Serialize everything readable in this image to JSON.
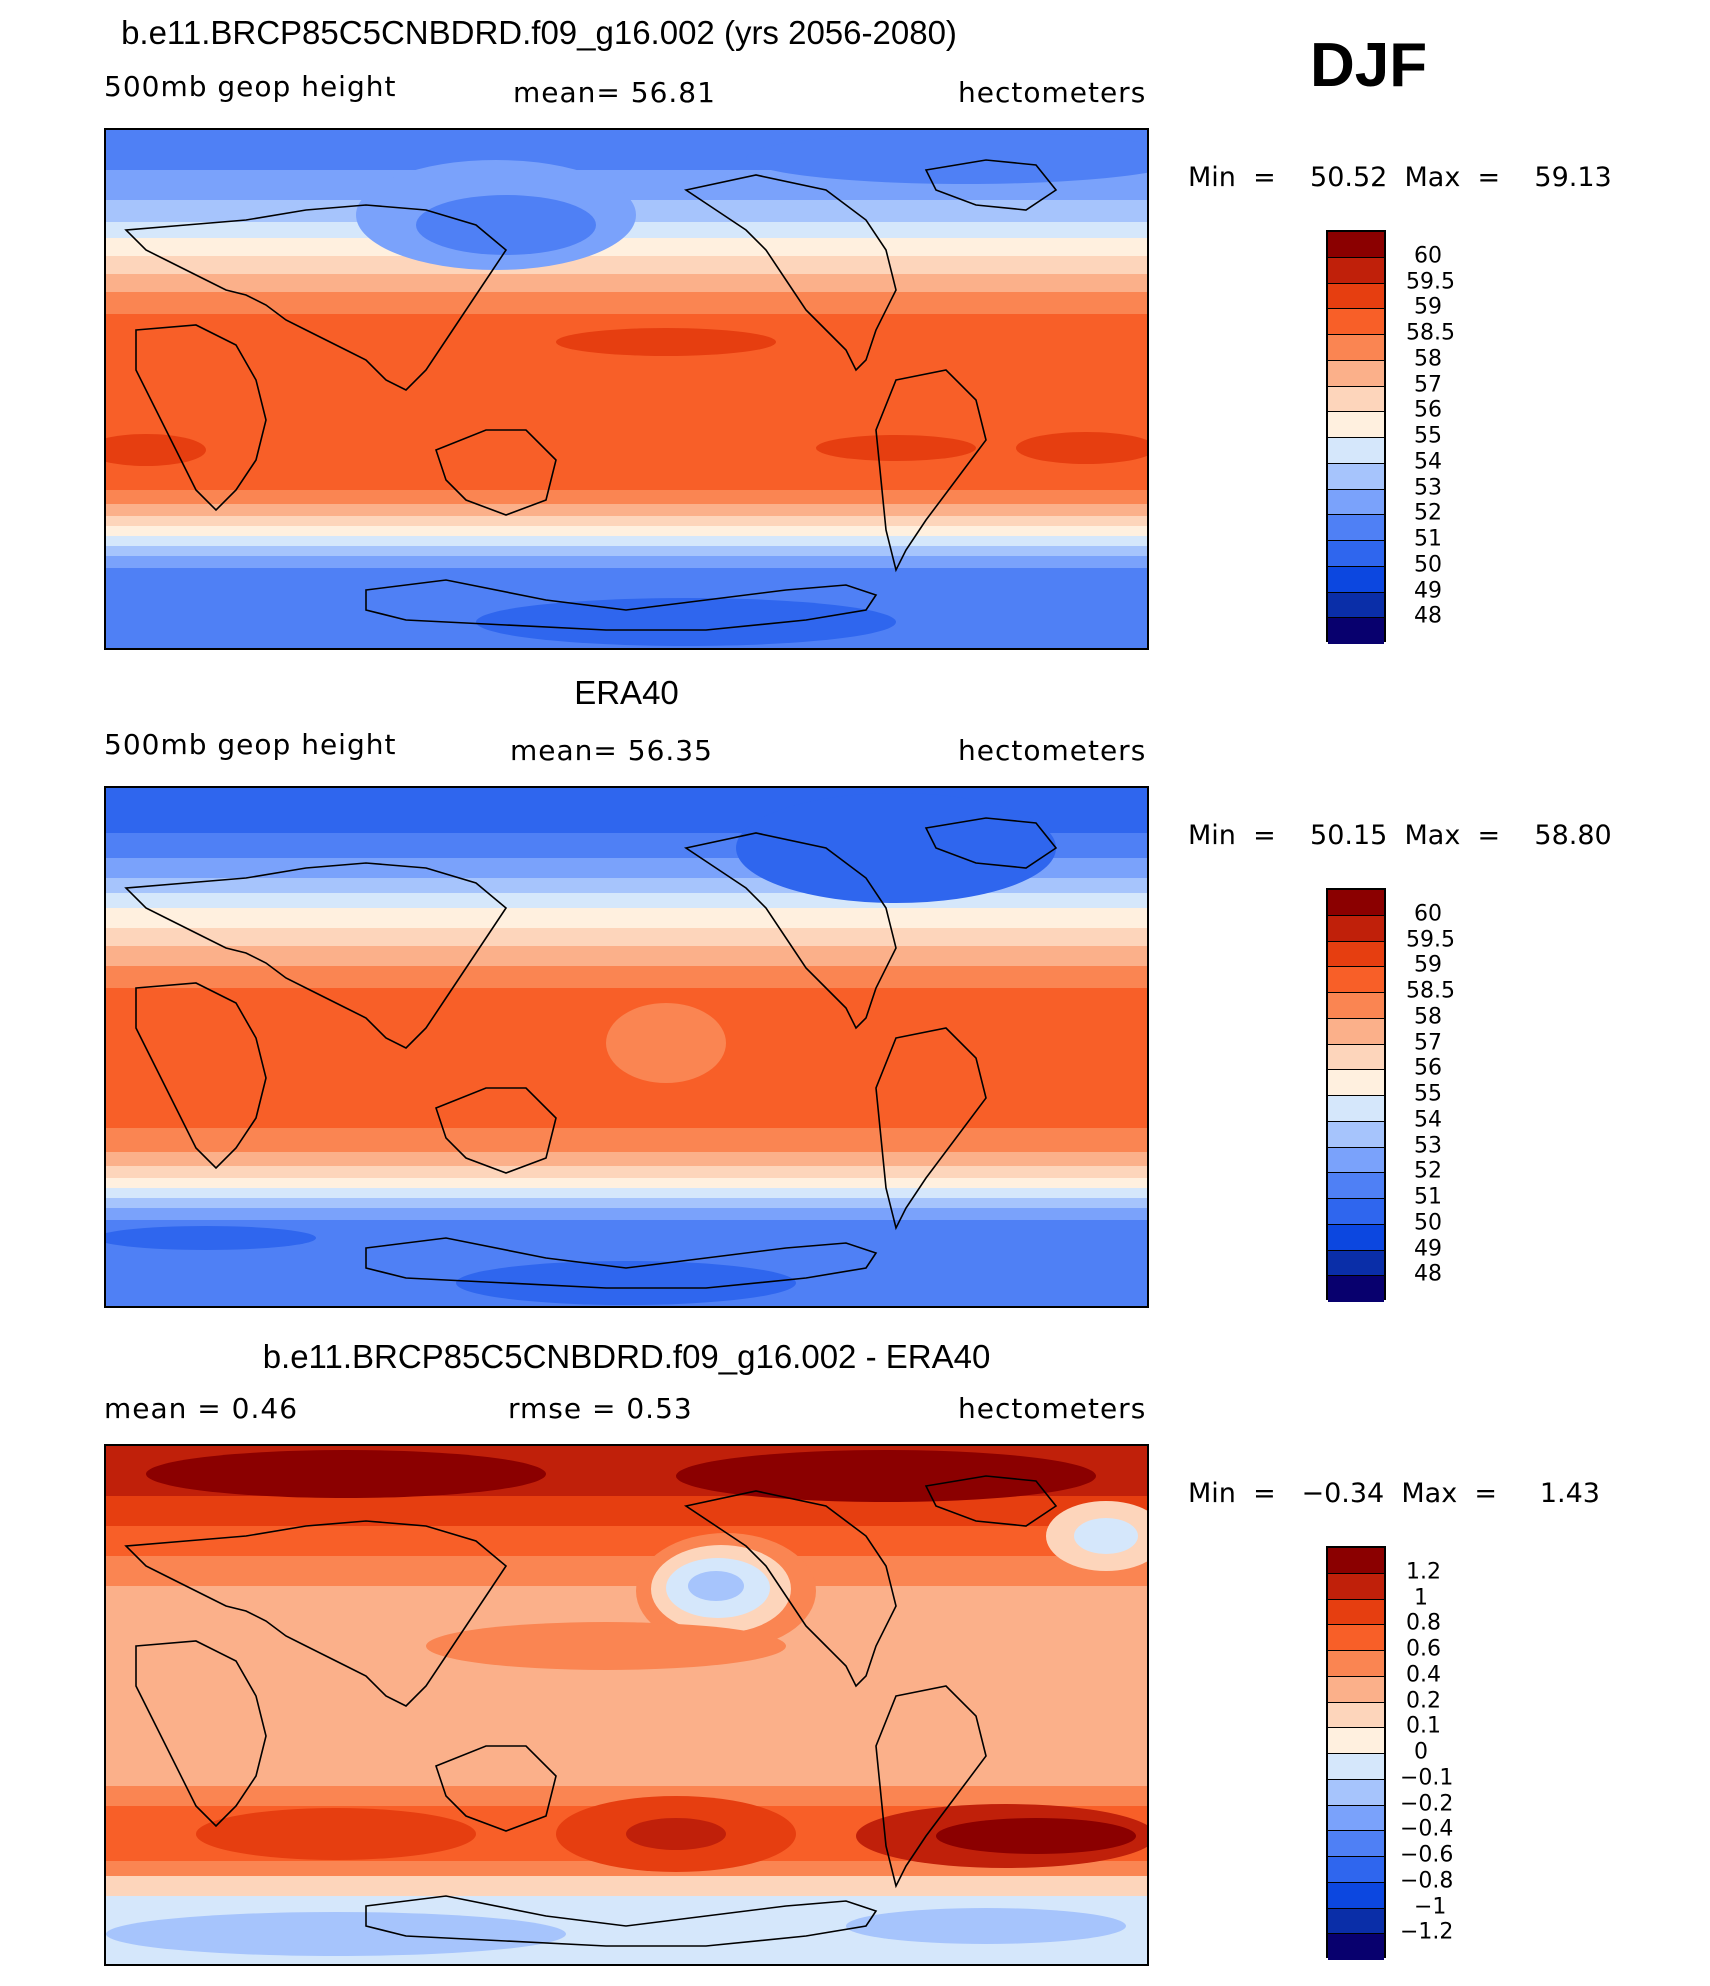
{
  "season": "DJF",
  "colors": {
    "abs_scale": [
      "#08006e",
      "#0a2ea8",
      "#0c47e0",
      "#2f66ee",
      "#4f80f5",
      "#7aa2fb",
      "#a6c4fc",
      "#d5e7fb",
      "#fff0df",
      "#fdd5bb",
      "#fbb08a",
      "#fa8552",
      "#f85f28",
      "#e63e10",
      "#c0200a",
      "#8b0000"
    ],
    "diff_scale": [
      "#08006e",
      "#0a2ea8",
      "#0c47e0",
      "#2f66ee",
      "#4f80f5",
      "#7aa2fb",
      "#a6c4fc",
      "#d5e7fb",
      "#fff0df",
      "#fdd5bb",
      "#fbb08a",
      "#fa8552",
      "#f85f28",
      "#e63e10",
      "#c0200a",
      "#8b0000"
    ]
  },
  "panels": [
    {
      "title": "b.e11.BRCP85C5CNBDRD.f09_g16.002 (yrs 2056-2080)",
      "left_label": "500mb  geop  height",
      "center_label": "mean=   56.81",
      "right_label": "hectometers",
      "minmax": "Min  =    50.52  Max  =    59.13",
      "colorbar_labels": [
        "60",
        "59.5",
        "59",
        "58.5",
        "58",
        "57",
        "56",
        "55",
        "54",
        "53",
        "52",
        "51",
        "50",
        "49",
        "48"
      ]
    },
    {
      "title": "ERA40",
      "left_label": "500mb  geop  height",
      "center_label": "mean=   56.35",
      "right_label": "hectometers",
      "minmax": "Min  =    50.15  Max  =    58.80",
      "colorbar_labels": [
        "60",
        "59.5",
        "59",
        "58.5",
        "58",
        "57",
        "56",
        "55",
        "54",
        "53",
        "52",
        "51",
        "50",
        "49",
        "48"
      ]
    },
    {
      "title": "b.e11.BRCP85C5CNBDRD.f09_g16.002 - ERA40",
      "left_label": "mean  =     0.46",
      "center_label": "rmse  =     0.53",
      "right_label": "hectometers",
      "minmax": "Min  =   −0.34  Max  =     1.43",
      "colorbar_labels": [
        "1.2",
        "1",
        "0.8",
        "0.6",
        "0.4",
        "0.2",
        "0.1",
        "0",
        "−0.1",
        "−0.2",
        "−0.4",
        "−0.6",
        "−0.8",
        "−1",
        "−1.2"
      ]
    }
  ]
}
